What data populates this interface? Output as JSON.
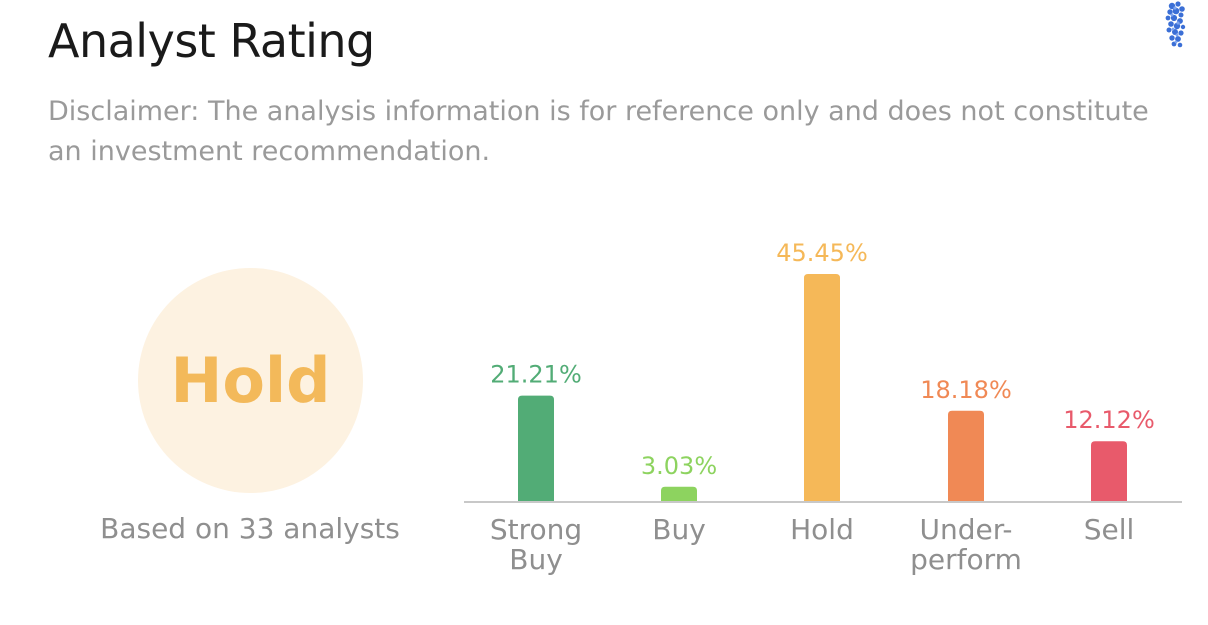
{
  "header": {
    "title": "Analyst Rating",
    "disclaimer": "Disclaimer: The analysis information is for reference only and does not constitute an investment recommendation."
  },
  "summary": {
    "rating": "Hold",
    "rating_color": "#f3b95a",
    "circle_color": "#fdf2e1",
    "analyst_count_text": "Based on 33 analysts"
  },
  "logo_icon": "blue-crystal-logo-icon",
  "chart_data": {
    "type": "bar",
    "title": "",
    "xlabel": "",
    "ylabel": "",
    "categories": [
      [
        "Strong",
        "Buy"
      ],
      [
        "Buy"
      ],
      [
        "Hold"
      ],
      [
        "Under-",
        "perform"
      ],
      [
        "Sell"
      ]
    ],
    "values": [
      21.21,
      3.03,
      45.45,
      18.18,
      12.12
    ],
    "value_labels": [
      "21.21%",
      "3.03%",
      "45.45%",
      "18.18%",
      "12.12%"
    ],
    "colors": [
      "#52ac76",
      "#8dd35f",
      "#f5b858",
      "#f08955",
      "#e85a6b"
    ],
    "ylim": [
      0,
      50
    ],
    "grid": false,
    "legend": false
  }
}
